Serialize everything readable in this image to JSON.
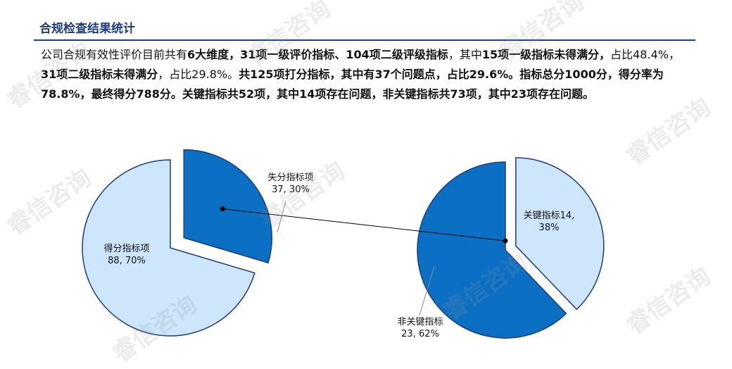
{
  "header": {
    "title": "合规检查结果统计"
  },
  "summary": {
    "segments": [
      {
        "text": "公司合规有效性评价目前共有",
        "bold": false
      },
      {
        "text": "6大维度，31项一级评价指标、104项二级评级指标",
        "bold": true
      },
      {
        "text": "，其中",
        "bold": false
      },
      {
        "text": "15项一级指标未得满分，",
        "bold": true
      },
      {
        "text": "占比48.4%，",
        "bold": false
      },
      {
        "text": "31项二级指标未得满分",
        "bold": true
      },
      {
        "text": "，占比29.8%。",
        "bold": false
      },
      {
        "text": "共125项打分指标，其中有37个问题点，占比29.6%。指标总分1000分，得分率为78.8%，最终得分788分。关键指标共52项，其中14项存在问题，非关键指标共73项，其中23项存在问题。",
        "bold": true
      }
    ]
  },
  "watermark": {
    "text": "睿信咨询",
    "color": "#999999"
  },
  "colors": {
    "light": "#CDE6FC",
    "dark": "#0B70C4",
    "stroke": "#1F3D7A"
  },
  "chart_data": [
    {
      "type": "pie",
      "slices": [
        {
          "name": "得分指标项",
          "value": 88,
          "percent": "70%",
          "color": "#CDE6FC",
          "exploded": false
        },
        {
          "name": "失分指标项",
          "value": 37,
          "percent": "30%",
          "color": "#0B70C4",
          "exploded": true
        }
      ],
      "labels": [
        {
          "line1": "得分指标项",
          "line2": "88, 70%"
        },
        {
          "line1": "失分指标项",
          "line2": "37, 30%"
        }
      ]
    },
    {
      "type": "pie",
      "slices": [
        {
          "name": "关键指标",
          "value": 14,
          "percent": "38%",
          "color": "#CDE6FC",
          "exploded": true
        },
        {
          "name": "非关键指标",
          "value": 23,
          "percent": "62%",
          "color": "#0B70C4",
          "exploded": false
        }
      ],
      "labels": [
        {
          "line1": "关键指标14,",
          "line2": "38%"
        },
        {
          "line1": "非关键指标",
          "line2": "23, 62%"
        }
      ]
    }
  ]
}
